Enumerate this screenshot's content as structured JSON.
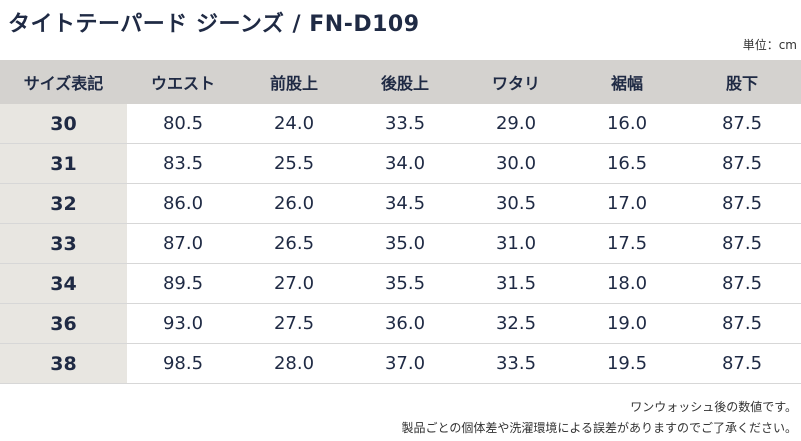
{
  "title": "タイトテーパード ジーンズ / FN-D109",
  "unit_label": "単位：cm",
  "table": {
    "headers": [
      "サイズ表記",
      "ウエスト",
      "前股上",
      "後股上",
      "ワタリ",
      "裾幅",
      "股下"
    ],
    "rows": [
      [
        "30",
        "80.5",
        "24.0",
        "33.5",
        "29.0",
        "16.0",
        "87.5"
      ],
      [
        "31",
        "83.5",
        "25.5",
        "34.0",
        "30.0",
        "16.5",
        "87.5"
      ],
      [
        "32",
        "86.0",
        "26.0",
        "34.5",
        "30.5",
        "17.0",
        "87.5"
      ],
      [
        "33",
        "87.0",
        "26.5",
        "35.0",
        "31.0",
        "17.5",
        "87.5"
      ],
      [
        "34",
        "89.5",
        "27.0",
        "35.5",
        "31.5",
        "18.0",
        "87.5"
      ],
      [
        "36",
        "93.0",
        "27.5",
        "36.0",
        "32.5",
        "19.0",
        "87.5"
      ],
      [
        "38",
        "98.5",
        "28.0",
        "37.0",
        "33.5",
        "19.5",
        "87.5"
      ]
    ]
  },
  "notes": [
    "ワンウォッシュ後の数値です。",
    "製品ごとの個体差や洗濯環境による誤差がありますのでご了承ください。"
  ],
  "colors": {
    "header_bg": "#d4d2cf",
    "size_col_bg": "#e8e6e1",
    "text": "#1f2a44"
  }
}
